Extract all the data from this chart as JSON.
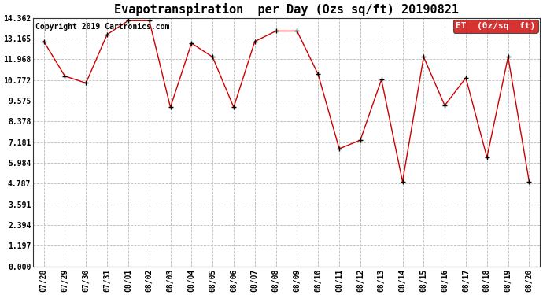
{
  "title": "Evapotranspiration  per Day (Ozs sq/ft) 20190821",
  "copyright": "Copyright 2019 Cartronics.com",
  "legend_label": "ET  (0z/sq  ft)",
  "x_labels": [
    "07/28",
    "07/29",
    "07/30",
    "07/31",
    "08/01",
    "08/02",
    "08/03",
    "08/04",
    "08/05",
    "08/06",
    "08/07",
    "08/08",
    "08/09",
    "08/10",
    "08/11",
    "08/12",
    "08/13",
    "08/14",
    "08/15",
    "08/16",
    "08/17",
    "08/18",
    "08/19",
    "08/20"
  ],
  "y_values": [
    13.0,
    11.0,
    10.6,
    13.4,
    14.2,
    14.2,
    9.2,
    12.9,
    12.1,
    9.2,
    13.0,
    13.6,
    13.6,
    11.1,
    6.8,
    7.3,
    10.8,
    4.9,
    12.1,
    9.3,
    10.9,
    6.3,
    12.1,
    4.9
  ],
  "y_ticks": [
    0.0,
    1.197,
    2.394,
    3.591,
    4.787,
    5.984,
    7.181,
    8.378,
    9.575,
    10.772,
    11.968,
    13.165,
    14.362
  ],
  "y_tick_labels": [
    "0.000",
    "1.197",
    "2.394",
    "3.591",
    "4.787",
    "5.984",
    "7.181",
    "8.378",
    "9.575",
    "10.772",
    "11.968",
    "13.165",
    "14.362"
  ],
  "ylim": [
    0.0,
    14.362
  ],
  "line_color": "#cc0000",
  "marker_color": "#000000",
  "background_color": "#ffffff",
  "grid_color": "#bbbbbb",
  "legend_bg": "#cc0000",
  "legend_text_color": "#ffffff",
  "title_fontsize": 11,
  "copyright_fontsize": 7,
  "tick_fontsize": 7,
  "legend_fontsize": 8
}
